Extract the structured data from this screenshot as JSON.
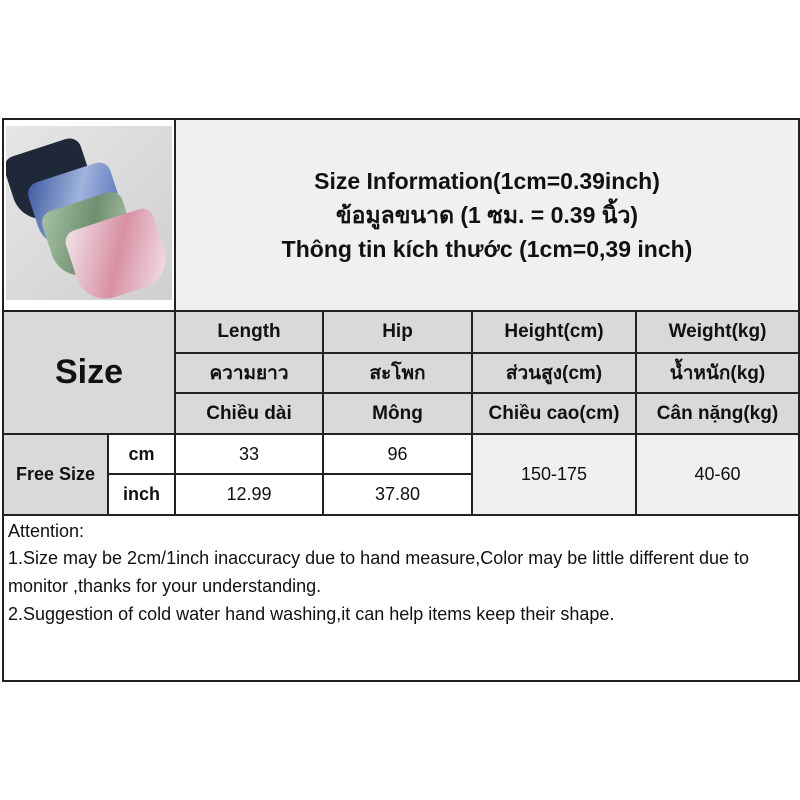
{
  "title": {
    "line1": "Size Information(1cm=0.39inch)",
    "line2": "ข้อมูลขนาด (1 ซม. = 0.39 นิ้ว)",
    "line3": "Thông tin kích thước (1cm=0,39 inch)"
  },
  "size_label": "Size",
  "columns": [
    {
      "en": "Length",
      "th": "ความยาว",
      "vi": "Chiều dài"
    },
    {
      "en": "Hip",
      "th": "สะโพก",
      "vi": "Mông"
    },
    {
      "en": "Height(cm)",
      "th": "ส่วนสูง(cm)",
      "vi": "Chiều cao(cm)"
    },
    {
      "en": "Weight(kg)",
      "th": "น้ำหนัก(kg)",
      "vi": "Cân nặng(kg)"
    }
  ],
  "rows": {
    "size_name": "Free Size",
    "cm": {
      "unit": "cm",
      "length": "33",
      "hip": "96"
    },
    "inch": {
      "unit": "inch",
      "length": "12.99",
      "hip": "37.80"
    },
    "height": "150-175",
    "weight": "40-60"
  },
  "notes": {
    "heading": "Attention:",
    "line1": "1.Size may be 2cm/1inch inaccuracy due to hand measure,Color may be little different due to monitor ,thanks for your understanding.",
    "line2": "2.Suggestion of cold water hand washing,it can help items keep their shape."
  },
  "colors": {
    "header_bg": "#d9d9d9",
    "light_bg": "#f0f0f0",
    "border": "#222222"
  }
}
